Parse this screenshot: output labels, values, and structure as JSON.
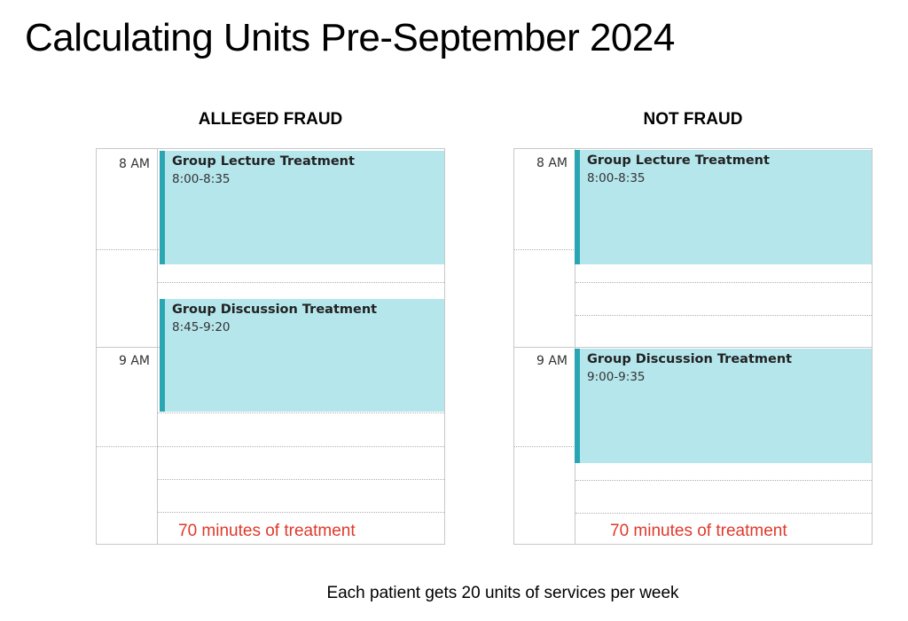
{
  "title": "Calculating Units Pre-September 2024",
  "panels": [
    {
      "heading": "ALLEGED FRAUD",
      "time_labels": [
        "8 AM",
        "9 AM"
      ],
      "events": [
        {
          "title": "Group Lecture Treatment",
          "time": "8:00-8:35"
        },
        {
          "title": "Group Discussion Treatment",
          "time": "8:45-9:20"
        }
      ],
      "minutes_note": "70 minutes of treatment"
    },
    {
      "heading": "NOT FRAUD",
      "time_labels": [
        "8 AM",
        "9 AM"
      ],
      "events": [
        {
          "title": "Group Lecture Treatment",
          "time": "8:00-8:35"
        },
        {
          "title": "Group Discussion Treatment",
          "time": "9:00-9:35"
        }
      ],
      "minutes_note": "70 minutes of treatment"
    }
  ],
  "footer": "Each patient gets 20 units of services per week",
  "colors": {
    "event_fill": "#b5e6ec",
    "event_accent": "#2aa6b3",
    "note_red": "#e0392b"
  }
}
